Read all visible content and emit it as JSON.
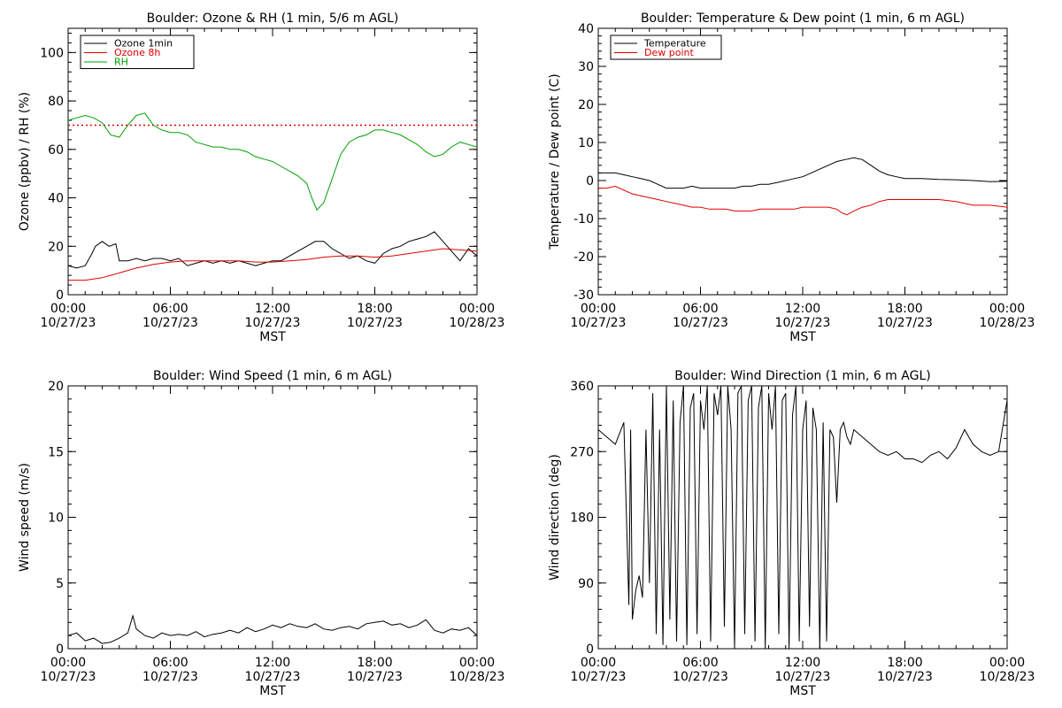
{
  "chart_data": [
    {
      "type": "line",
      "title": "Boulder: Ozone & RH (1 min, 5/6 m AGL)",
      "xlabel": "MST",
      "ylabel": "Ozone (ppbv) / RH (%)",
      "ylim": [
        0,
        110
      ],
      "yticks": [
        0,
        20,
        40,
        60,
        80,
        100
      ],
      "x_tick_times": [
        "00:00",
        "06:00",
        "12:00",
        "18:00",
        "00:00"
      ],
      "x_tick_dates": [
        "10/27/23",
        "10/27/23",
        "10/27/23",
        "10/27/23",
        "10/28/23"
      ],
      "xlim_hours": [
        0,
        24
      ],
      "legend_position": "top-left",
      "reference_line": {
        "y": 70,
        "color": "#e00000",
        "style": "dotted"
      },
      "series": [
        {
          "name": "Ozone 1min",
          "color": "#000000",
          "x": [
            0,
            0.5,
            1,
            1.4,
            1.6,
            2,
            2.4,
            2.8,
            3,
            3.5,
            4,
            4.5,
            5,
            5.5,
            6,
            6.5,
            7,
            7.5,
            8,
            8.5,
            9,
            9.5,
            10,
            10.5,
            11,
            11.5,
            12,
            12.5,
            13,
            13.5,
            14,
            14.5,
            15,
            15.5,
            16,
            16.5,
            17,
            17.5,
            18,
            18.5,
            19,
            19.5,
            20,
            20.5,
            21,
            21.5,
            22,
            22.5,
            23,
            23.5,
            24
          ],
          "y": [
            12,
            11,
            12,
            17,
            20,
            22,
            20,
            21,
            14,
            14,
            15,
            14,
            15,
            15,
            14,
            15,
            12,
            13,
            14,
            13,
            14,
            13,
            14,
            13,
            12,
            13,
            14,
            14,
            16,
            18,
            20,
            22,
            22,
            19,
            17,
            15,
            16,
            14,
            13,
            17,
            19,
            20,
            22,
            23,
            24,
            26,
            22,
            18,
            14,
            19,
            16
          ]
        },
        {
          "name": "Ozone 8h",
          "color": "#e00000",
          "x": [
            0,
            1,
            2,
            3,
            4,
            5,
            6,
            7,
            8,
            9,
            10,
            11,
            12,
            13,
            14,
            15,
            16,
            17,
            18,
            19,
            20,
            21,
            22,
            23,
            24
          ],
          "y": [
            6,
            6,
            7,
            9,
            11,
            12.5,
            13.5,
            14,
            14,
            14,
            14,
            13.5,
            13.5,
            14,
            14.5,
            15.5,
            16,
            16,
            15.5,
            16,
            17,
            18,
            19,
            18.5,
            18
          ]
        },
        {
          "name": "RH",
          "color": "#00a000",
          "x": [
            0,
            0.5,
            1,
            1.5,
            2,
            2.5,
            3,
            3.5,
            4,
            4.5,
            5,
            5.5,
            6,
            6.5,
            7,
            7.5,
            8,
            8.5,
            9,
            9.5,
            10,
            10.5,
            11,
            11.5,
            12,
            12.5,
            13,
            13.5,
            14,
            14.3,
            14.6,
            15,
            15.5,
            16,
            16.5,
            17,
            17.5,
            18,
            18.5,
            19,
            19.5,
            20,
            20.5,
            21,
            21.5,
            22,
            22.5,
            23,
            23.5,
            24
          ],
          "y": [
            72,
            73,
            74,
            73,
            71,
            66,
            65,
            70,
            74,
            75,
            70,
            68,
            67,
            67,
            66,
            63,
            62,
            61,
            61,
            60,
            60,
            59,
            57,
            56,
            55,
            53,
            51,
            49,
            46,
            40,
            35,
            38,
            48,
            58,
            63,
            65,
            66,
            68,
            68,
            67,
            66,
            64,
            62,
            59,
            57,
            58,
            61,
            63,
            62,
            61
          ]
        }
      ]
    },
    {
      "type": "line",
      "title": "Boulder: Temperature & Dew point (1 min, 6 m AGL)",
      "xlabel": "MST",
      "ylabel": "Temperature / Dew point (C)",
      "ylim": [
        -30,
        40
      ],
      "yticks": [
        -30,
        -20,
        -10,
        0,
        10,
        20,
        30,
        40
      ],
      "x_tick_times": [
        "00:00",
        "06:00",
        "12:00",
        "18:00",
        "00:00"
      ],
      "x_tick_dates": [
        "10/27/23",
        "10/27/23",
        "10/27/23",
        "10/27/23",
        "10/28/23"
      ],
      "xlim_hours": [
        0,
        24
      ],
      "legend_position": "top-left",
      "series": [
        {
          "name": "Temperature",
          "color": "#000000",
          "x": [
            0,
            0.5,
            1,
            1.5,
            2,
            2.5,
            3,
            3.5,
            4,
            4.5,
            5,
            5.5,
            6,
            6.5,
            7,
            7.5,
            8,
            8.5,
            9,
            9.5,
            10,
            10.5,
            11,
            11.5,
            12,
            12.5,
            13,
            13.5,
            14,
            14.5,
            15,
            15.5,
            16,
            16.5,
            17,
            17.5,
            18,
            19,
            20,
            21,
            22,
            23,
            24
          ],
          "y": [
            2,
            2,
            2,
            1.5,
            1,
            0.5,
            0,
            -1,
            -2,
            -2,
            -2,
            -1.5,
            -2,
            -2,
            -2,
            -2,
            -2,
            -1.5,
            -1.5,
            -1,
            -1,
            -0.5,
            0,
            0.5,
            1,
            2,
            3,
            4,
            5,
            5.5,
            6,
            5.5,
            4,
            2.5,
            1.5,
            1,
            0.5,
            0.5,
            0.3,
            0.2,
            0,
            -0.3,
            -0.2
          ]
        },
        {
          "name": "Dew point",
          "color": "#e00000",
          "x": [
            0,
            0.5,
            1,
            1.5,
            2,
            2.5,
            3,
            3.5,
            4,
            4.5,
            5,
            5.5,
            6,
            6.5,
            7,
            7.5,
            8,
            8.5,
            9,
            9.5,
            10,
            10.5,
            11,
            11.5,
            12,
            12.5,
            13,
            13.5,
            14,
            14.3,
            14.6,
            15,
            15.5,
            16,
            16.5,
            17,
            18,
            19,
            20,
            21,
            22,
            23,
            24
          ],
          "y": [
            -2,
            -2,
            -1.5,
            -2.5,
            -3.5,
            -4,
            -4.5,
            -5,
            -5.5,
            -6,
            -6.5,
            -7,
            -7,
            -7.5,
            -7.5,
            -7.5,
            -8,
            -8,
            -8,
            -7.5,
            -7.5,
            -7.5,
            -7.5,
            -7.5,
            -7,
            -7,
            -7,
            -7,
            -7.5,
            -8.5,
            -9,
            -8,
            -7,
            -6.5,
            -5.5,
            -5,
            -5,
            -5,
            -5,
            -5.5,
            -6.5,
            -6.5,
            -7
          ]
        }
      ]
    },
    {
      "type": "line",
      "title": "Boulder: Wind Speed (1 min, 6 m AGL)",
      "xlabel": "MST",
      "ylabel": "Wind speed (m/s)",
      "ylim": [
        0,
        20
      ],
      "yticks": [
        0,
        5,
        10,
        15,
        20
      ],
      "x_tick_times": [
        "00:00",
        "06:00",
        "12:00",
        "18:00",
        "00:00"
      ],
      "x_tick_dates": [
        "10/27/23",
        "10/27/23",
        "10/27/23",
        "10/27/23",
        "10/28/23"
      ],
      "xlim_hours": [
        0,
        24
      ],
      "series": [
        {
          "color": "#000000",
          "x": [
            0,
            0.5,
            1,
            1.5,
            2,
            2.5,
            3,
            3.5,
            3.8,
            4,
            4.5,
            5,
            5.5,
            6,
            6.5,
            7,
            7.5,
            8,
            8.5,
            9,
            9.5,
            10,
            10.5,
            11,
            11.5,
            12,
            12.5,
            13,
            13.5,
            14,
            14.5,
            15,
            15.5,
            16,
            16.5,
            17,
            17.5,
            18,
            18.5,
            19,
            19.5,
            20,
            20.5,
            21,
            21.5,
            22,
            22.5,
            23,
            23.5,
            24
          ],
          "y": [
            1,
            1.2,
            0.6,
            0.8,
            0.4,
            0.5,
            0.8,
            1.2,
            2.5,
            1.5,
            1,
            0.8,
            1.2,
            1,
            1.1,
            1,
            1.3,
            0.9,
            1.1,
            1.2,
            1.4,
            1.2,
            1.6,
            1.3,
            1.5,
            1.8,
            1.6,
            1.9,
            1.7,
            1.6,
            1.9,
            1.5,
            1.4,
            1.6,
            1.7,
            1.5,
            1.9,
            2,
            2.1,
            1.8,
            1.9,
            1.6,
            1.8,
            2.2,
            1.4,
            1.2,
            1.5,
            1.4,
            1.6,
            1
          ]
        }
      ]
    },
    {
      "type": "line",
      "title": "Boulder: Wind Direction (1 min, 6 m AGL)",
      "xlabel": "MST",
      "ylabel": "Wind direction (deg)",
      "ylim": [
        0,
        360
      ],
      "yticks": [
        0,
        90,
        180,
        270,
        360
      ],
      "x_tick_times": [
        "00:00",
        "06:00",
        "12:00",
        "18:00",
        "00:00"
      ],
      "x_tick_dates": [
        "10/27/23",
        "10/27/23",
        "10/27/23",
        "10/27/23",
        "10/28/23"
      ],
      "xlim_hours": [
        0,
        24
      ],
      "series": [
        {
          "color": "#000000",
          "x": [
            0,
            0.5,
            1,
            1.5,
            1.8,
            1.9,
            2,
            2.2,
            2.4,
            2.6,
            2.8,
            3,
            3.2,
            3.4,
            3.6,
            3.8,
            4,
            4.2,
            4.4,
            4.6,
            4.8,
            5,
            5.2,
            5.4,
            5.6,
            5.8,
            6,
            6.2,
            6.4,
            6.6,
            6.8,
            7,
            7.2,
            7.4,
            7.6,
            7.8,
            8,
            8.2,
            8.4,
            8.6,
            8.8,
            9,
            9.2,
            9.4,
            9.6,
            9.8,
            10,
            10.2,
            10.4,
            10.6,
            10.8,
            11,
            11.2,
            11.4,
            11.6,
            11.8,
            12,
            12.2,
            12.4,
            12.6,
            12.8,
            13,
            13.2,
            13.4,
            13.6,
            13.8,
            14,
            14.2,
            14.4,
            14.6,
            14.8,
            15,
            15.5,
            16,
            16.5,
            17,
            17.5,
            18,
            18.5,
            19,
            19.5,
            20,
            20.5,
            21,
            21.5,
            22,
            22.5,
            23,
            23.5,
            24
          ],
          "y": [
            300,
            290,
            280,
            310,
            60,
            300,
            40,
            80,
            100,
            70,
            300,
            90,
            350,
            20,
            300,
            5,
            360,
            40,
            340,
            10,
            310,
            360,
            5,
            330,
            350,
            20,
            340,
            300,
            360,
            10,
            350,
            320,
            360,
            30,
            360,
            300,
            0,
            350,
            360,
            20,
            340,
            360,
            10,
            330,
            360,
            0,
            350,
            300,
            360,
            20,
            340,
            350,
            0,
            320,
            360,
            10,
            300,
            340,
            30,
            330,
            300,
            0,
            310,
            10,
            300,
            290,
            200,
            300,
            310,
            290,
            280,
            300,
            290,
            280,
            270,
            265,
            270,
            260,
            260,
            255,
            265,
            270,
            260,
            275,
            300,
            280,
            270,
            265,
            270,
            340
          ]
        }
      ]
    }
  ]
}
